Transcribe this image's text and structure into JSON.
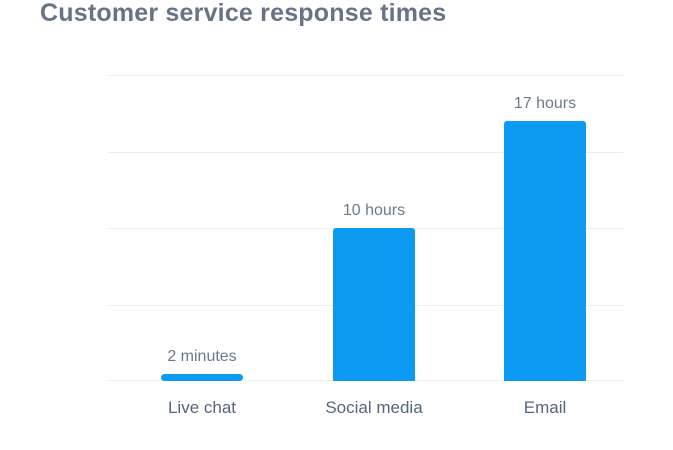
{
  "title": "Customer service response times",
  "chart_data": {
    "type": "bar",
    "title": "Customer service response times",
    "categories": [
      "Live chat",
      "Social media",
      "Email"
    ],
    "values_hours": [
      0.033,
      10,
      17
    ],
    "value_labels": [
      "2 minutes",
      "10 hours",
      "17 hours"
    ],
    "xlabel": "",
    "ylabel": "",
    "ylim": [
      0,
      20
    ],
    "gridline_step_hours": 5,
    "grid": "horizontal-only",
    "axis_tick_labels": "none",
    "legend": "none",
    "bar_color": "#0d9af2"
  },
  "colors": {
    "background": "#ffffff",
    "bar": "#0d9af2",
    "gridline": "#ededf2",
    "title_text": "#6a7285",
    "value_label_text": "#6b7a8c",
    "category_label_text": "#55667b"
  }
}
